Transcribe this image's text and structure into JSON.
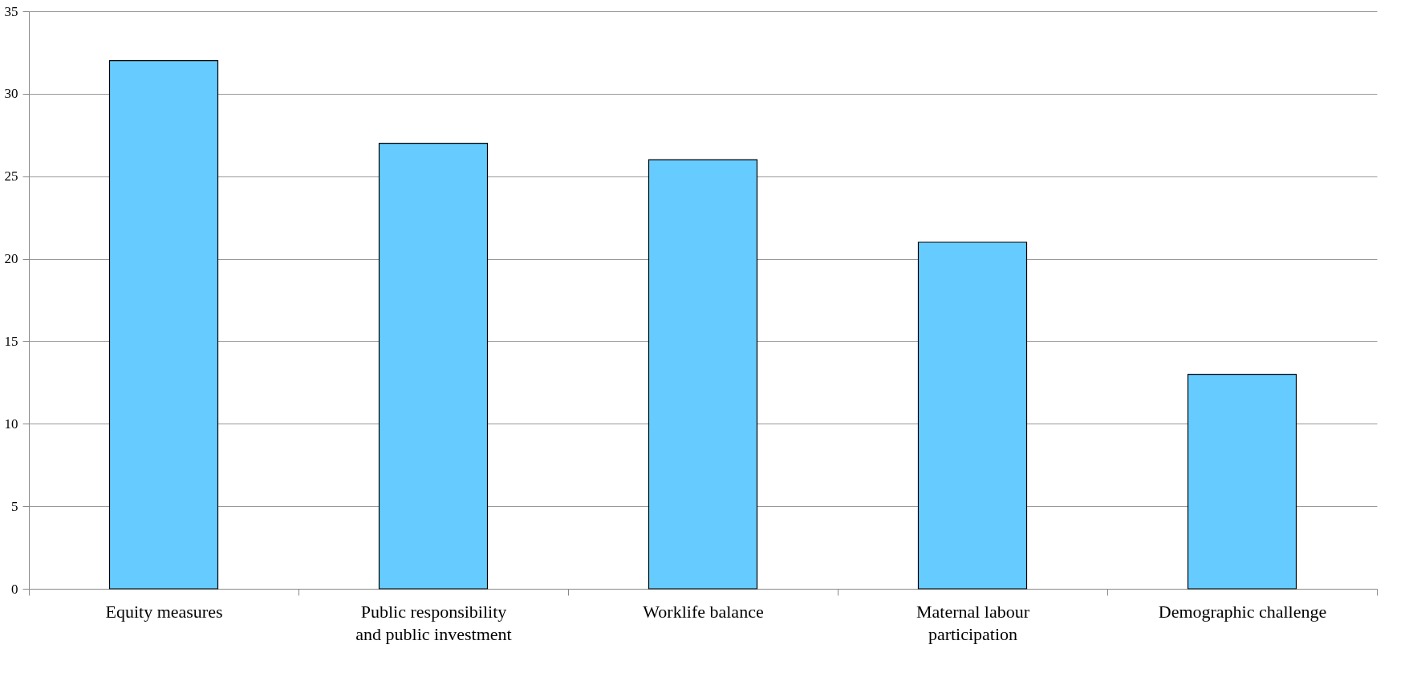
{
  "chart_data": {
    "type": "bar",
    "categories": [
      "Equity measures",
      "Public responsibility and public investment",
      "Worklife balance",
      "Maternal labour participation",
      "Demographic challenge"
    ],
    "values": [
      32,
      27,
      26,
      21,
      13
    ],
    "color": "#66ccff",
    "ylim": [
      0,
      35
    ],
    "yticks": [
      0,
      5,
      10,
      15,
      20,
      25,
      30,
      35
    ],
    "grid": "y"
  }
}
